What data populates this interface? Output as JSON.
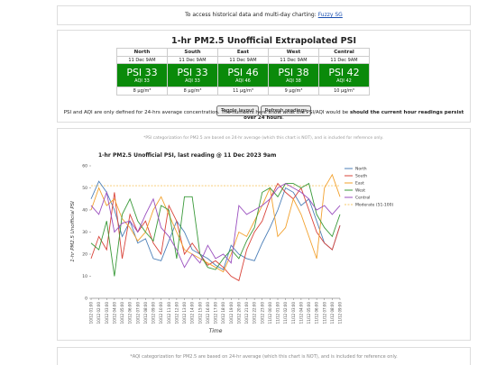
{
  "banner": {
    "text": "To access historical data and multi-day charting:",
    "link": "Fuzzy SG"
  },
  "summary": {
    "title": "1-hr PM2.5 Unofficial Extrapolated PSI",
    "regions": [
      {
        "name": "North",
        "time": "11 Dec 9AM",
        "psi": "PSI 33",
        "aqi": "AQI 33",
        "conc": "8 µg/m³"
      },
      {
        "name": "South",
        "time": "11 Dec 9AM",
        "psi": "PSI 33",
        "aqi": "AQI 33",
        "conc": "8 µg/m³"
      },
      {
        "name": "East",
        "time": "11 Dec 9AM",
        "psi": "PSI 46",
        "aqi": "AQI 46",
        "conc": "11 µg/m³"
      },
      {
        "name": "West",
        "time": "11 Dec 9AM",
        "psi": "PSI 38",
        "aqi": "AQI 38",
        "conc": "9 µg/m³"
      },
      {
        "name": "Central",
        "time": "11 Dec 9AM",
        "psi": "PSI 42",
        "aqi": "AQI 42",
        "conc": "10 µg/m³"
      }
    ],
    "buttons": [
      "Toggle layout",
      "Refresh readings"
    ],
    "note_prefix": "PSI and AQI are only defined for 24-hrs average concentration. The numbers here show what the PSI/AQI would be",
    "note_bold": "should the current hour readings persist over 24 hours",
    "note_suffix": "."
  },
  "chart_note": "*PSI categorization for PM2.5 are based on 24-hr average (which this chart is NOT), and is included for reference only.",
  "chart_data": {
    "type": "line",
    "title": "1-hr PM2.5 Unofficial PSI, last reading @ 11 Dec 2023 9am",
    "xlabel": "Time",
    "ylabel": "1-hr PM2.5 Unofficial PSI",
    "categories": [
      "10/12 01:00",
      "10/12 02:00",
      "10/12 03:00",
      "10/12 04:00",
      "10/12 05:00",
      "10/12 06:00",
      "10/12 07:00",
      "10/12 08:00",
      "10/12 09:00",
      "10/12 10:00",
      "10/12 11:00",
      "10/12 12:00",
      "10/12 13:00",
      "10/12 14:00",
      "10/12 15:00",
      "10/12 16:00",
      "10/12 17:00",
      "10/12 18:00",
      "10/12 19:00",
      "10/12 20:00",
      "10/12 21:00",
      "10/12 22:00",
      "10/12 23:00",
      "11/12 00:00",
      "11/12 01:00",
      "11/12 02:00",
      "11/12 03:00",
      "11/12 04:00",
      "11/12 05:00",
      "11/12 06:00",
      "11/12 07:00",
      "11/12 08:00",
      "11/12 09:00"
    ],
    "series": [
      {
        "name": "North",
        "color": "#4c7fb8",
        "values": [
          45,
          53,
          48,
          40,
          28,
          35,
          25,
          27,
          18,
          17,
          26,
          35,
          30,
          22,
          20,
          18,
          15,
          13,
          24,
          20,
          18,
          17,
          25,
          32,
          40,
          50,
          48,
          42,
          45,
          35,
          25,
          22,
          33
        ]
      },
      {
        "name": "South",
        "color": "#d9443a",
        "values": [
          18,
          28,
          22,
          48,
          18,
          38,
          30,
          35,
          25,
          20,
          42,
          35,
          20,
          25,
          20,
          15,
          17,
          14,
          10,
          8,
          22,
          30,
          35,
          45,
          52,
          48,
          45,
          50,
          40,
          30,
          25,
          22,
          33
        ]
      },
      {
        "name": "East",
        "color": "#f2a12e",
        "values": [
          40,
          50,
          42,
          45,
          36,
          32,
          26,
          30,
          40,
          46,
          38,
          30,
          22,
          20,
          18,
          16,
          14,
          12,
          20,
          30,
          28,
          35,
          42,
          50,
          28,
          32,
          45,
          38,
          28,
          18,
          50,
          56,
          46
        ]
      },
      {
        "name": "West",
        "color": "#3a9a3a",
        "values": [
          25,
          22,
          35,
          10,
          38,
          45,
          35,
          30,
          26,
          42,
          40,
          18,
          46,
          46,
          20,
          14,
          13,
          18,
          22,
          18,
          26,
          32,
          48,
          50,
          46,
          52,
          52,
          50,
          52,
          38,
          32,
          28,
          38
        ]
      },
      {
        "name": "Central",
        "color": "#9a4fbf",
        "values": [
          42,
          38,
          48,
          30,
          34,
          35,
          30,
          38,
          45,
          32,
          28,
          22,
          14,
          20,
          16,
          24,
          18,
          20,
          16,
          42,
          38,
          40,
          42,
          45,
          50,
          52,
          50,
          48,
          45,
          40,
          42,
          38,
          42
        ]
      }
    ],
    "reference_lines": [
      {
        "name": "Moderate (51-100)",
        "value": 51,
        "color": "#f7c86a",
        "style": "dashed"
      }
    ],
    "ylim": [
      0,
      60
    ],
    "yticks": [
      0,
      10,
      20,
      30,
      40,
      50,
      60
    ],
    "grid": false,
    "legend": "right"
  },
  "footer_note": "*AQI categorization for PM2.5 are based on 24-hr average (which this chart is NOT), and is included for reference only."
}
